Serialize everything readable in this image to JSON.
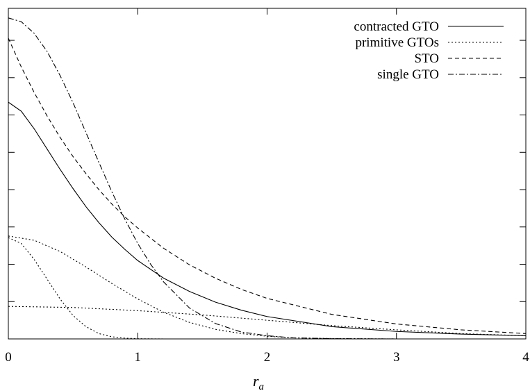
{
  "chart_data": {
    "type": "line",
    "title": "",
    "xlabel": "r",
    "xlabel_subscript": "a",
    "ylabel": "",
    "xlim": [
      0,
      4
    ],
    "ylim": [
      0,
      0.62
    ],
    "x_ticks": [
      0,
      1,
      2,
      3,
      4
    ],
    "x_tick_labels": [
      "0",
      "1",
      "2",
      "3",
      "4"
    ],
    "y_ticks": [
      0.0,
      0.07,
      0.14,
      0.21,
      0.28,
      0.35,
      0.42,
      0.49,
      0.56
    ],
    "y_tick_labels": [],
    "grid": false,
    "legend_position": "top-right",
    "series": [
      {
        "name": "contracted GTO",
        "dash": "solid",
        "x": [
          0,
          0.1,
          0.2,
          0.3,
          0.4,
          0.5,
          0.6,
          0.7,
          0.8,
          0.9,
          1.0,
          1.2,
          1.4,
          1.6,
          1.8,
          2.0,
          2.5,
          3.0,
          3.5,
          4.0
        ],
        "y": [
          0.444,
          0.427,
          0.394,
          0.356,
          0.318,
          0.282,
          0.248,
          0.218,
          0.191,
          0.168,
          0.147,
          0.114,
          0.089,
          0.069,
          0.054,
          0.042,
          0.023,
          0.014,
          0.009,
          0.006
        ]
      },
      {
        "name": "primitive GTOs",
        "dash": "dotted",
        "x": [
          0,
          0.1,
          0.2,
          0.3,
          0.4,
          0.5,
          0.6,
          0.7,
          0.8,
          0.9,
          1.0,
          1.2
        ],
        "y": [
          0.19,
          0.179,
          0.149,
          0.112,
          0.075,
          0.044,
          0.023,
          0.01,
          0.004,
          0.0015,
          0.0004,
          0.0
        ]
      },
      {
        "name": "primitive GTOs",
        "dash": "dotted",
        "x": [
          0,
          0.2,
          0.4,
          0.6,
          0.8,
          1.0,
          1.2,
          1.4,
          1.6,
          1.8,
          2.0,
          2.2,
          2.5,
          3.0
        ],
        "y": [
          0.193,
          0.185,
          0.164,
          0.135,
          0.104,
          0.075,
          0.05,
          0.031,
          0.018,
          0.01,
          0.005,
          0.002,
          0.0008,
          0.0
        ]
      },
      {
        "name": "primitive GTOs",
        "dash": "dotted",
        "x": [
          0,
          0.5,
          1.0,
          1.5,
          2.0,
          2.5,
          3.0,
          3.5,
          4.0
        ],
        "y": [
          0.061,
          0.059,
          0.053,
          0.045,
          0.035,
          0.025,
          0.017,
          0.01,
          0.006
        ]
      },
      {
        "name": "STO",
        "dash": "dashed",
        "x": [
          0,
          0.1,
          0.2,
          0.3,
          0.4,
          0.5,
          0.6,
          0.7,
          0.8,
          0.9,
          1.0,
          1.2,
          1.4,
          1.6,
          1.8,
          2.0,
          2.5,
          3.0,
          3.5,
          4.0
        ],
        "y": [
          0.564,
          0.51,
          0.462,
          0.418,
          0.378,
          0.342,
          0.31,
          0.28,
          0.253,
          0.229,
          0.208,
          0.17,
          0.139,
          0.114,
          0.093,
          0.076,
          0.046,
          0.028,
          0.017,
          0.01
        ]
      },
      {
        "name": "single GTO",
        "dash": "dashdot",
        "x": [
          0,
          0.1,
          0.2,
          0.3,
          0.4,
          0.5,
          0.6,
          0.7,
          0.8,
          0.9,
          1.0,
          1.1,
          1.2,
          1.4,
          1.6,
          1.8,
          2.0,
          2.2,
          2.5,
          3.0
        ],
        "y": [
          0.602,
          0.595,
          0.573,
          0.539,
          0.494,
          0.443,
          0.387,
          0.331,
          0.276,
          0.225,
          0.179,
          0.14,
          0.107,
          0.058,
          0.029,
          0.013,
          0.006,
          0.002,
          0.0005,
          0.0
        ]
      }
    ],
    "legend": [
      {
        "label": "contracted GTO",
        "dash": "solid"
      },
      {
        "label": "primitive GTOs",
        "dash": "dotted"
      },
      {
        "label": "STO",
        "dash": "dashed"
      },
      {
        "label": "single GTO",
        "dash": "dashdot"
      }
    ]
  }
}
